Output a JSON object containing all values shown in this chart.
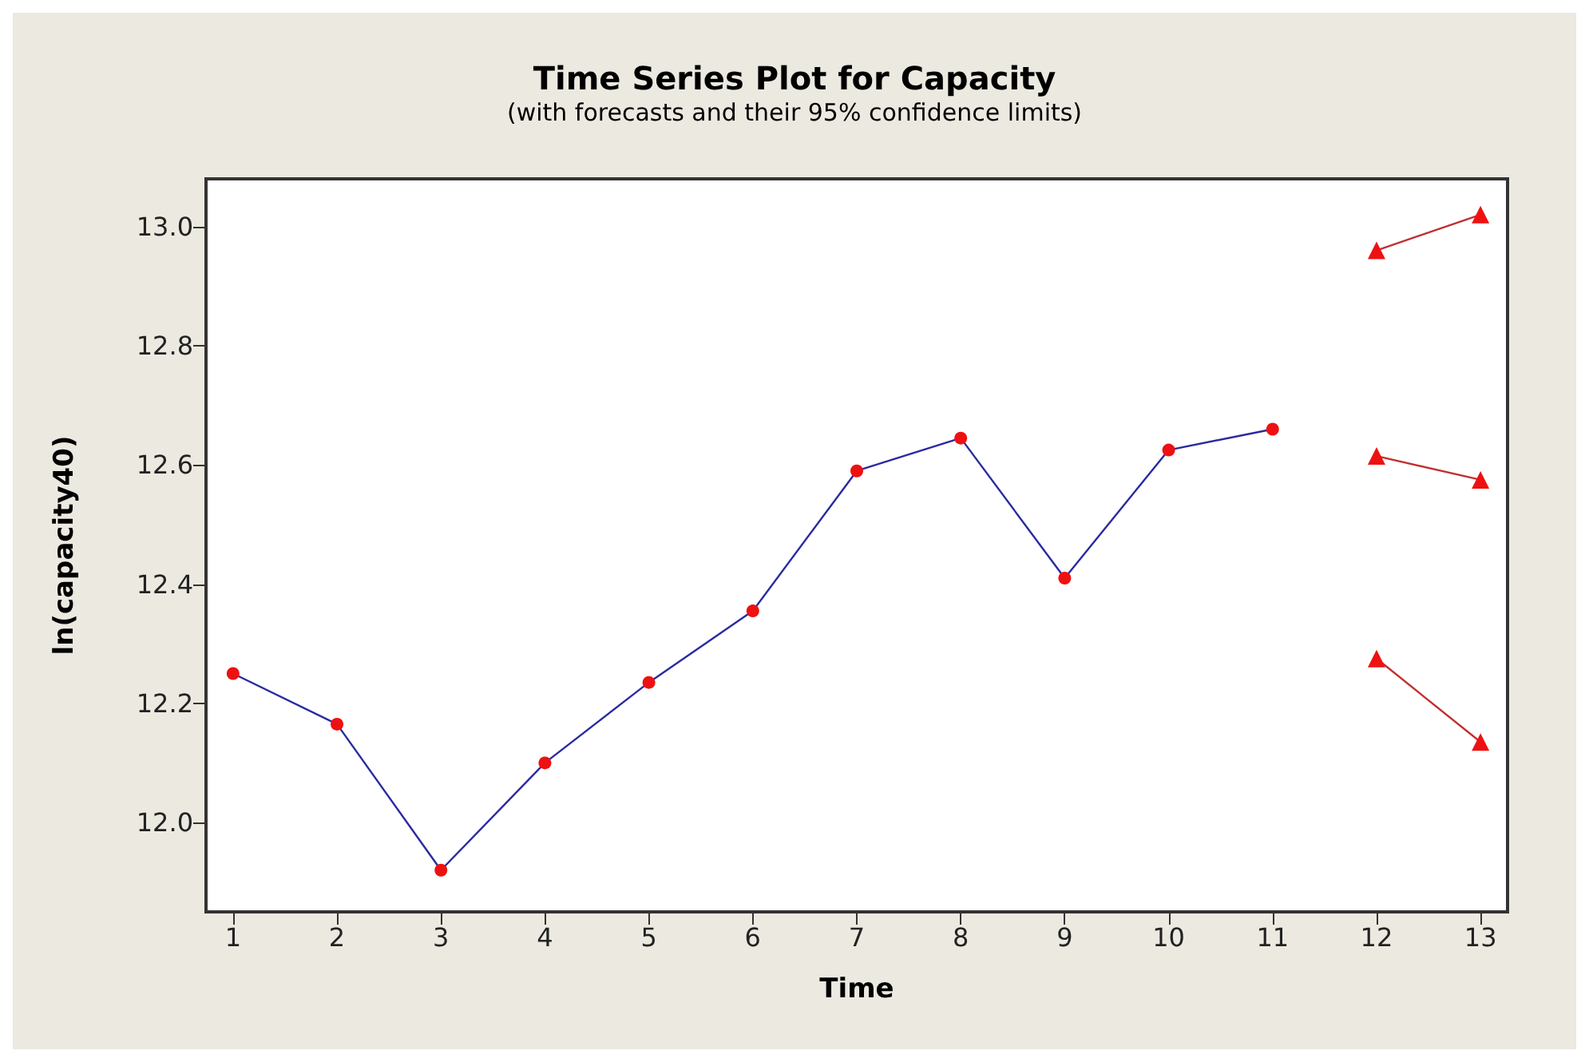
{
  "chart_data": {
    "type": "line",
    "title": "Time Series Plot for Capacity",
    "subtitle": "(with forecasts and their 95% confidence limits)",
    "xlabel": "Time",
    "ylabel": "ln(capacity40)",
    "xlim": [
      0.74,
      13.26
    ],
    "xticks": [
      1,
      2,
      3,
      4,
      5,
      6,
      7,
      8,
      9,
      10,
      11,
      12,
      13
    ],
    "ylim": [
      11.85,
      13.08
    ],
    "yticks": [
      {
        "value": 12,
        "label": "12.0"
      },
      12.2,
      12.4,
      12.6,
      12.8,
      {
        "value": 13,
        "label": "13.0"
      }
    ],
    "series": [
      {
        "color": "#2a2aa0",
        "marker": "circle",
        "x": [
          1,
          2,
          3,
          4,
          5,
          6,
          7,
          8,
          9,
          10,
          11
        ],
        "values": [
          12.25,
          12.165,
          11.92,
          12.1,
          12.235,
          12.355,
          12.59,
          12.645,
          12.41,
          12.625,
          12.66
        ]
      },
      {
        "color": "#c03030",
        "marker": "triangle",
        "x": [
          12,
          13
        ],
        "values": [
          12.96,
          13.02
        ]
      },
      {
        "color": "#c03030",
        "marker": "triangle",
        "x": [
          12,
          13
        ],
        "values": [
          12.615,
          12.575
        ]
      },
      {
        "color": "#c03030",
        "marker": "triangle",
        "x": [
          12,
          13
        ],
        "values": [
          12.275,
          12.135
        ]
      }
    ]
  }
}
